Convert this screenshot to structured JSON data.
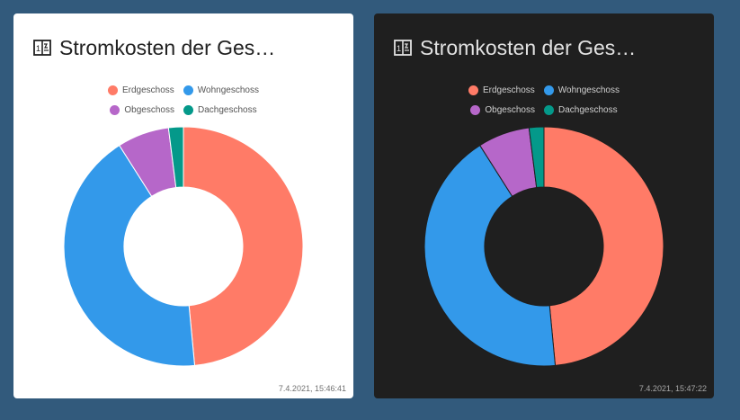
{
  "cards": [
    {
      "theme": "light",
      "title": "Stromkosten der Ges…",
      "icon": "energy-meter-icon",
      "timestamp": "7.4.2021, 15:46:41",
      "hole_color": "#ffffff"
    },
    {
      "theme": "dark",
      "title": "Stromkosten der Ges…",
      "icon": "energy-meter-icon",
      "timestamp": "7.4.2021, 15:47:22",
      "hole_color": "#1f1f1f"
    }
  ],
  "chart_data": {
    "type": "pie",
    "categories": [
      "Erdgeschoss",
      "Wohngeschoss",
      "Obgeschoss",
      "Dachgeschoss"
    ],
    "values": [
      48.5,
      42.5,
      7.0,
      2.0
    ],
    "colors": [
      "#ff7b67",
      "#3399ea",
      "#b667c9",
      "#04998a"
    ],
    "legend_position": "top"
  }
}
